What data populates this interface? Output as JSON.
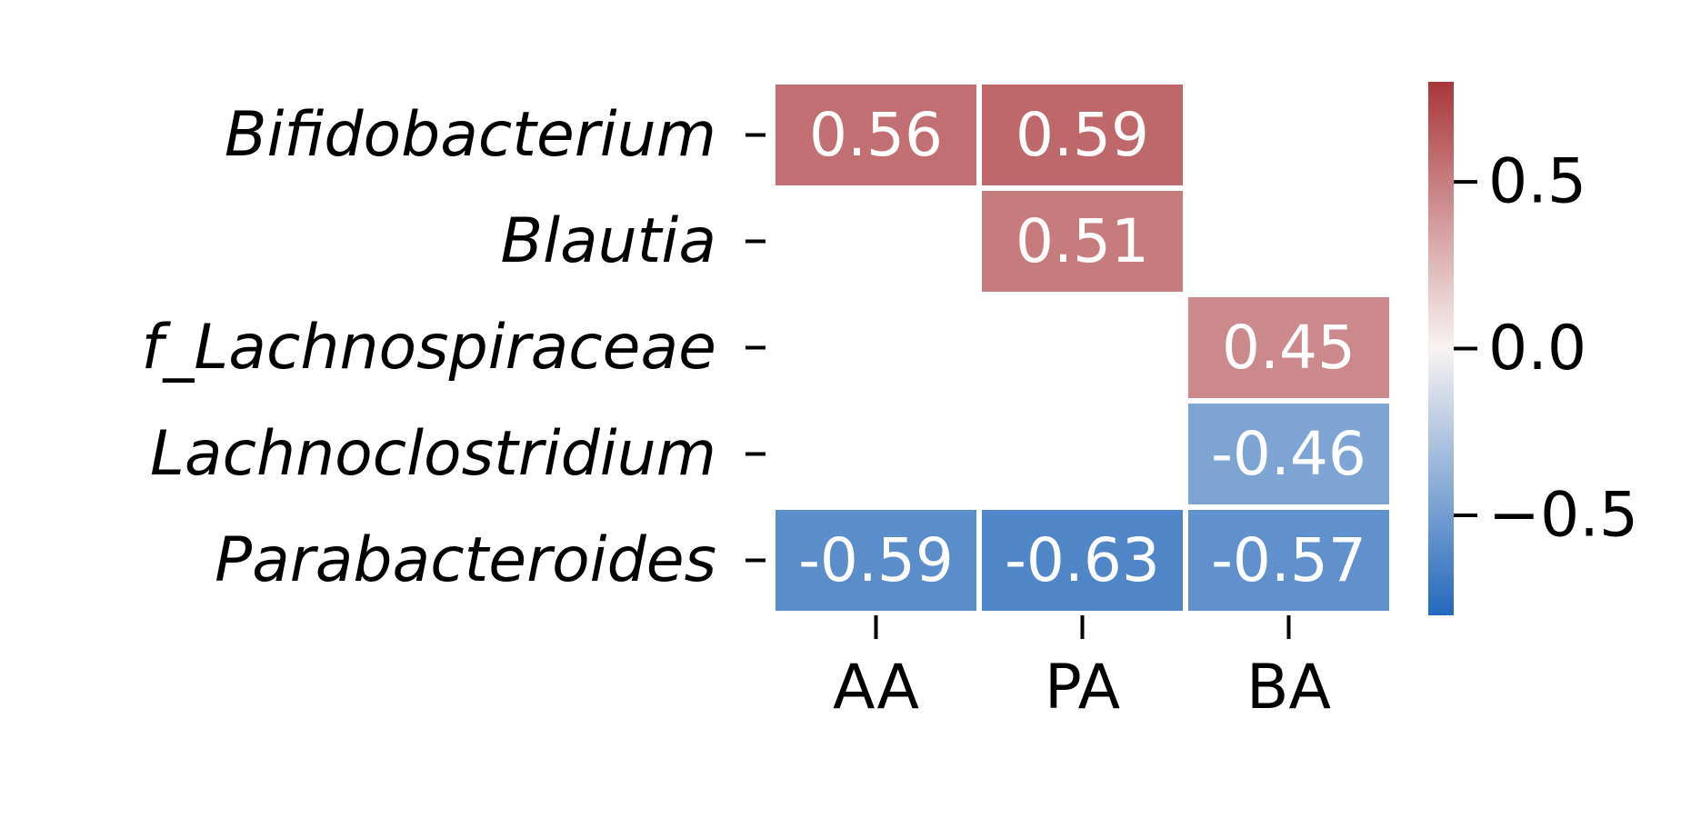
{
  "chart_data": {
    "type": "heatmap",
    "rows": [
      "Bifidobacterium",
      "Blautia",
      "f_Lachnospiraceae",
      "Lachnoclostridium",
      "Parabacteroides"
    ],
    "columns": [
      "AA",
      "PA",
      "BA"
    ],
    "values": [
      [
        0.56,
        0.59,
        null
      ],
      [
        null,
        0.51,
        null
      ],
      [
        null,
        null,
        0.45
      ],
      [
        null,
        null,
        -0.46
      ],
      [
        -0.59,
        -0.63,
        -0.57
      ]
    ],
    "value_labels": [
      [
        "0.56",
        "0.59",
        ""
      ],
      [
        "",
        "0.51",
        ""
      ],
      [
        "",
        "",
        "0.45"
      ],
      [
        "",
        "",
        "-0.46"
      ],
      [
        "-0.59",
        "-0.63",
        "-0.57"
      ]
    ],
    "colorbar": {
      "colormap": "vlag",
      "vmin": -0.8,
      "vmax": 0.8,
      "ticks": [
        0.5,
        0.0,
        -0.5
      ],
      "tick_labels": [
        "0.5",
        "0.0",
        "−0.5"
      ],
      "colors": {
        "low": "#2369bd",
        "mid": "#f8f3f2",
        "high": "#a9373b"
      }
    },
    "title": "",
    "xlabel": "",
    "ylabel": ""
  }
}
